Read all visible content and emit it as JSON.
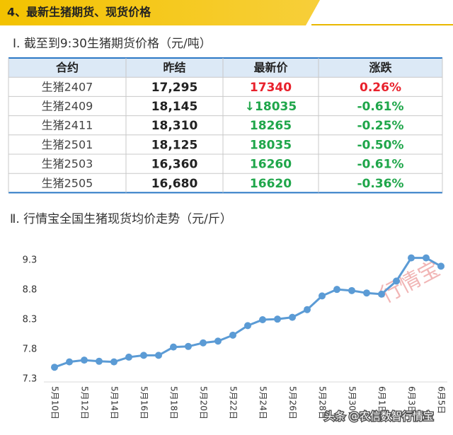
{
  "header": {
    "title": "4、最新生猪期货、现货价格"
  },
  "futures": {
    "title": "Ⅰ. 截至到9:30生猪期货价格（元/吨）",
    "table": {
      "columns": [
        "合约",
        "昨结",
        "最新价",
        "涨跌"
      ],
      "rows": [
        [
          "生猪2407",
          "17,295",
          "17340",
          "0.26%"
        ],
        [
          "生猪2409",
          "18,145",
          "↓18035",
          "-0.61%"
        ],
        [
          "生猪2411",
          "18,310",
          "18265",
          "-0.25%"
        ],
        [
          "生猪2501",
          "18,125",
          "18035",
          "-0.50%"
        ],
        [
          "生猪2503",
          "16,360",
          "16260",
          "-0.61%"
        ],
        [
          "生猪2505",
          "16,680",
          "16620",
          "-0.36%"
        ]
      ],
      "colors": [
        "#e8212c",
        "#1fa64a",
        "#1fa64a",
        "#1fa64a",
        "#1fa64a",
        "#1fa64a"
      ]
    }
  },
  "chart_data": {
    "type": "line",
    "title": "Ⅱ. 行情宝全国生猪现货均价走势（元/斤）",
    "categories": [
      "5月10日",
      null,
      "5月12日",
      null,
      "5月14日",
      null,
      "5月16日",
      null,
      "5月18日",
      null,
      "5月20日",
      null,
      "5月22日",
      null,
      "5月24日",
      null,
      "5月26日",
      null,
      "5月28日",
      null,
      "5月30日",
      null,
      "6月1日",
      null,
      "6月3日",
      null,
      "6月5日"
    ],
    "series": [
      {
        "name": "均价",
        "color": "#5b9bd5",
        "values": [
          7.5,
          7.59,
          7.62,
          7.6,
          7.59,
          7.67,
          7.7,
          7.7,
          7.84,
          7.85,
          7.91,
          7.94,
          8.04,
          8.2,
          8.3,
          8.31,
          8.34,
          8.47,
          8.7,
          8.81,
          8.79,
          8.75,
          8.73,
          8.95,
          9.34,
          9.34,
          9.2
        ]
      }
    ],
    "ylim": [
      7.3,
      9.3
    ],
    "yticks": [
      7.3,
      7.8,
      8.3,
      8.8,
      9.3
    ],
    "grid": false,
    "watermark": "行情宝",
    "footer": "头条 @农信数智行情宝"
  }
}
